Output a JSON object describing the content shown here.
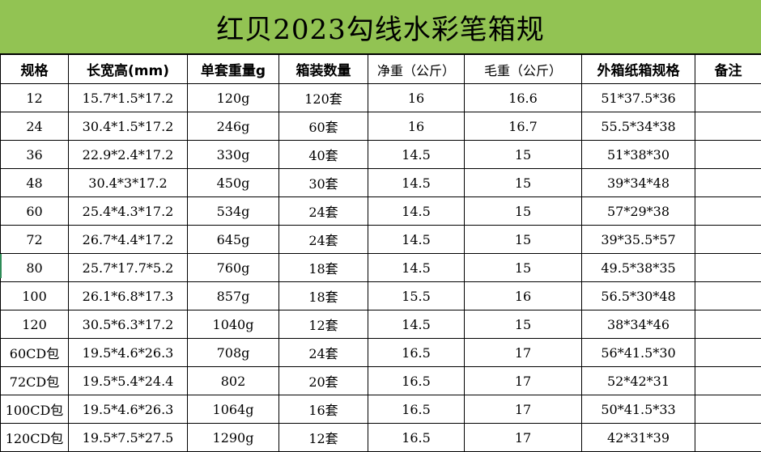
{
  "title": "红贝2023勾线水彩笔箱规",
  "headers": [
    "规格",
    "长宽高(mm)",
    "单套重量g",
    "箱装数量",
    "净重（公斤）",
    "毛重（公斤）",
    "外箱纸箱规格",
    "备注"
  ],
  "rows": [
    [
      "12",
      "15.7*1.5*17.2",
      "120g",
      "120套",
      "16",
      "16.6",
      "51*37.5*36",
      ""
    ],
    [
      "24",
      "30.4*1.5*17.2",
      "246g",
      "60套",
      "16",
      "16.7",
      "55.5*34*38",
      ""
    ],
    [
      "36",
      "22.9*2.4*17.2",
      "330g",
      "40套",
      "14.5",
      "15",
      "51*38*30",
      ""
    ],
    [
      "48",
      "30.4*3*17.2",
      "450g",
      "30套",
      "14.5",
      "15",
      "39*34*48",
      ""
    ],
    [
      "60",
      "25.4*4.3*17.2",
      "534g",
      "24套",
      "14.5",
      "15",
      "57*29*38",
      ""
    ],
    [
      "72",
      "26.7*4.4*17.2",
      "645g",
      "24套",
      "14.5",
      "15",
      "39*35.5*57",
      ""
    ],
    [
      "80",
      "25.7*17.7*5.2",
      "760g",
      "18套",
      "14.5",
      "15",
      "49.5*38*35",
      ""
    ],
    [
      "100",
      "26.1*6.8*17.3",
      "857g",
      "18套",
      "15.5",
      "16",
      "56.5*30*48",
      ""
    ],
    [
      "120",
      "30.5*6.3*17.2",
      "1040g",
      "12套",
      "14.5",
      "15",
      "38*34*46",
      ""
    ],
    [
      "60CD包",
      "19.5*4.6*26.3",
      "708g",
      "24套",
      "16.5",
      "17",
      "56*41.5*30",
      ""
    ],
    [
      "72CD包",
      "19.5*5.4*24.4",
      "802",
      "20套",
      "16.5",
      "17",
      "52*42*31",
      ""
    ],
    [
      "100CD包",
      "19.5*4.6*26.3",
      "1064g",
      "16套",
      "16.5",
      "17",
      "50*41.5*33",
      ""
    ],
    [
      "120CD包",
      "19.5*7.5*27.5",
      "1290g",
      "12套",
      "16.5",
      "17",
      "42*31*39",
      ""
    ]
  ]
}
